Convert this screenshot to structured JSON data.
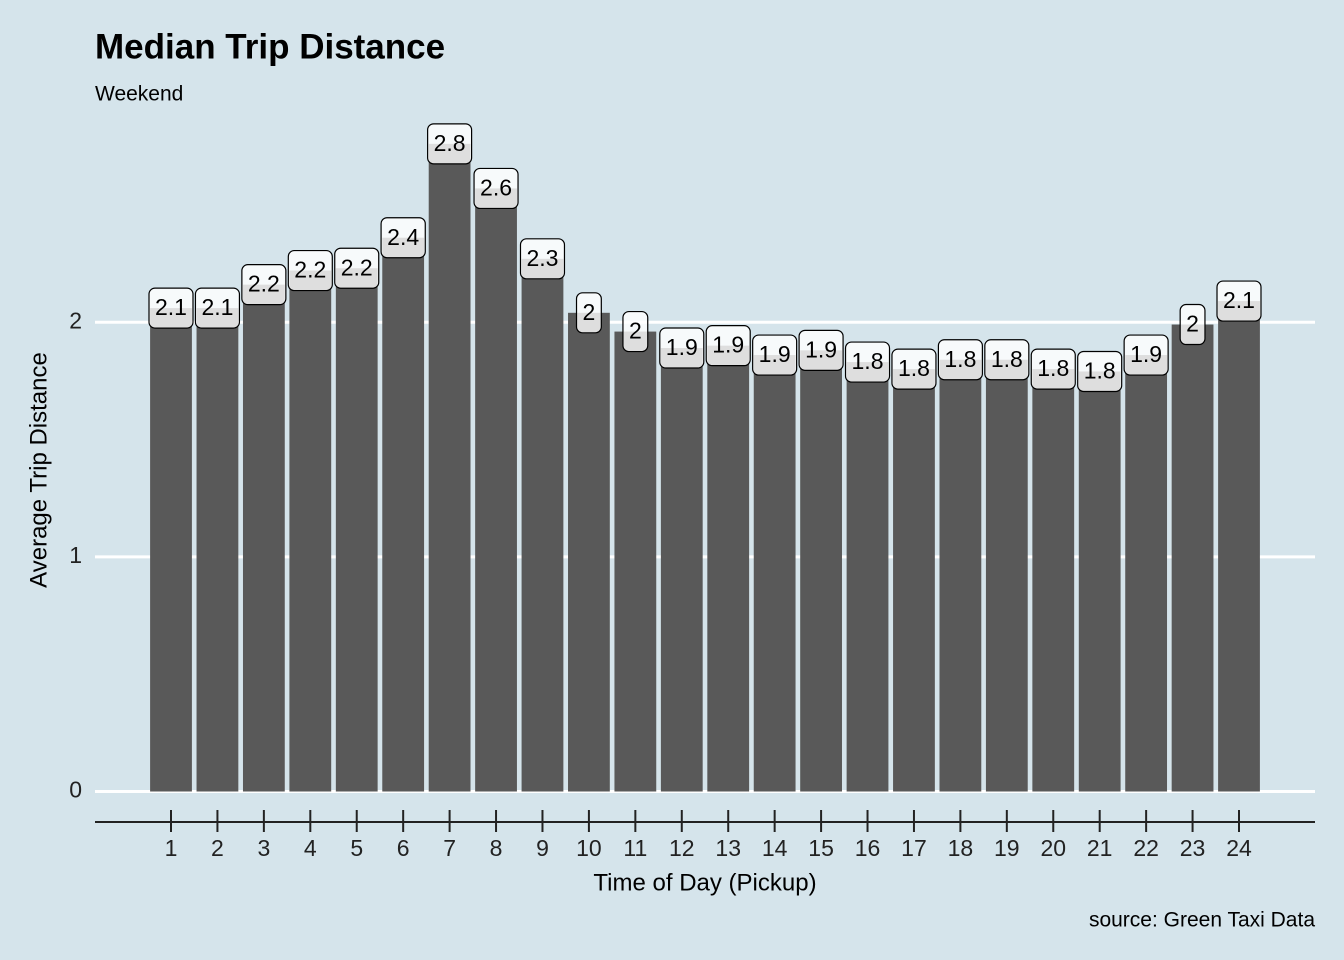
{
  "chart_data": {
    "type": "bar",
    "title": "Median Trip Distance",
    "subtitle": "Weekend",
    "x_label": "Time of Day (Pickup)",
    "y_label": "Average Trip Distance",
    "caption": "source: Green Taxi Data",
    "categories": [
      "1",
      "2",
      "3",
      "4",
      "5",
      "6",
      "7",
      "8",
      "9",
      "10",
      "11",
      "12",
      "13",
      "14",
      "15",
      "16",
      "17",
      "18",
      "19",
      "20",
      "21",
      "22",
      "23",
      "24"
    ],
    "values": [
      2.06,
      2.06,
      2.16,
      2.22,
      2.23,
      2.36,
      2.76,
      2.57,
      2.27,
      2.04,
      1.96,
      1.89,
      1.9,
      1.86,
      1.88,
      1.83,
      1.8,
      1.84,
      1.84,
      1.8,
      1.79,
      1.86,
      1.99,
      2.09
    ],
    "value_labels": [
      "2.1",
      "2.1",
      "2.2",
      "2.2",
      "2.2",
      "2.4",
      "2.8",
      "2.6",
      "2.3",
      "2",
      "2",
      "1.9",
      "1.9",
      "1.9",
      "1.9",
      "1.8",
      "1.8",
      "1.8",
      "1.8",
      "1.8",
      "1.8",
      "1.9",
      "2",
      "2.1"
    ],
    "color": "#595959",
    "ylim": [
      -0.13,
      2.9
    ],
    "yticks": [
      0,
      1,
      2
    ],
    "grid": true
  }
}
